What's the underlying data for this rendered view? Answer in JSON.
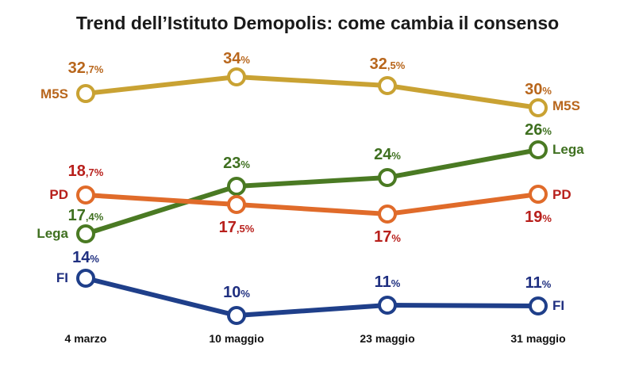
{
  "chart_data": {
    "type": "line",
    "title": "Trend dell’Istituto Demopolis: come cambia il consenso",
    "categories": [
      "4 marzo",
      "10 maggio",
      "23 maggio",
      "31 maggio"
    ],
    "grid": false,
    "legend": "none",
    "series": [
      {
        "name": "M5S",
        "color": "#c9a233",
        "label_color": "#b8661c",
        "values": [
          32.7,
          34,
          32.5,
          30
        ],
        "labels": [
          {
            "main": "32",
            "dec": ",7%"
          },
          {
            "main": "34",
            "dec": "%"
          },
          {
            "main": "32",
            "dec": ",5%"
          },
          {
            "main": "30",
            "dec": "%"
          }
        ]
      },
      {
        "name": "Lega",
        "color": "#4a7a23",
        "label_color": "#3f7020",
        "values": [
          17.4,
          23,
          24,
          26
        ],
        "labels": [
          {
            "main": "17",
            "dec": ",4%"
          },
          {
            "main": "23",
            "dec": "%"
          },
          {
            "main": "24",
            "dec": "%"
          },
          {
            "main": "26",
            "dec": "%"
          }
        ]
      },
      {
        "name": "PD",
        "color": "#e06b2a",
        "label_color": "#b8201c",
        "values": [
          18.7,
          17.5,
          17,
          19
        ],
        "labels": [
          {
            "main": "18",
            "dec": ",7%"
          },
          {
            "main": "17",
            "dec": ",5%"
          },
          {
            "main": "17",
            "dec": "%"
          },
          {
            "main": "19",
            "dec": "%"
          }
        ]
      },
      {
        "name": "FI",
        "color": "#1f3f8a",
        "label_color": "#1f2f80",
        "values": [
          14,
          10,
          11,
          11
        ],
        "labels": [
          {
            "main": "14",
            "dec": "%"
          },
          {
            "main": "10",
            "dec": "%"
          },
          {
            "main": "11",
            "dec": "%"
          },
          {
            "main": "11",
            "dec": "%"
          }
        ]
      }
    ]
  }
}
